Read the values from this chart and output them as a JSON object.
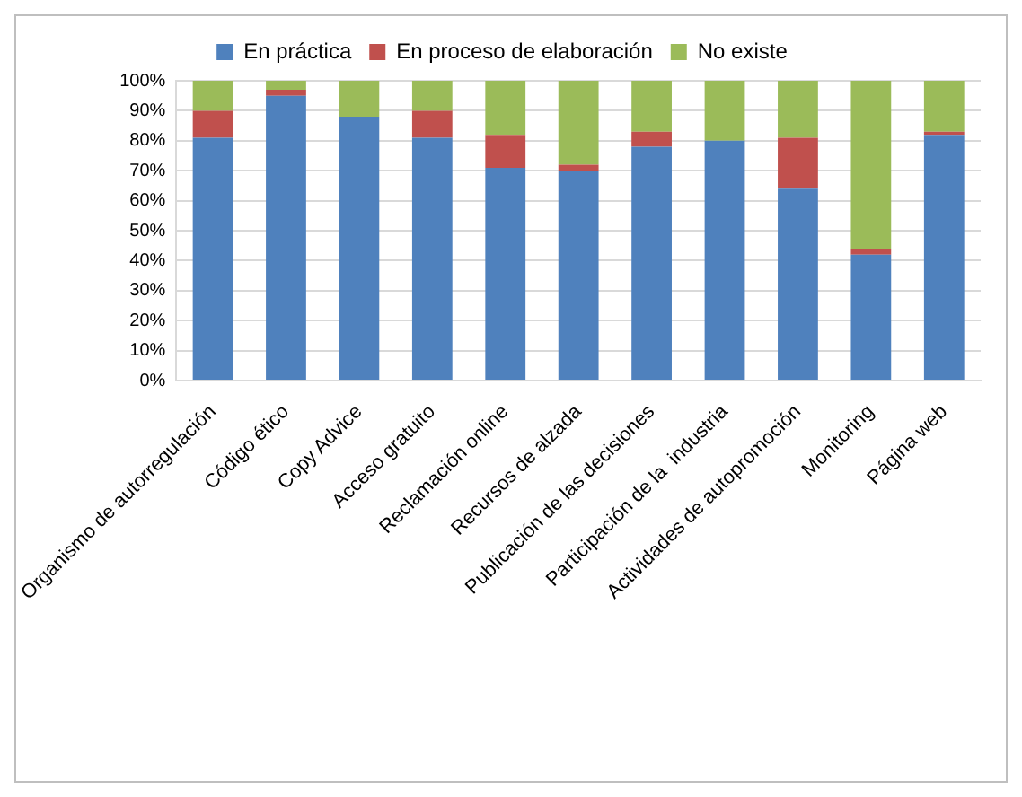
{
  "chart_data": {
    "type": "bar",
    "stacked": true,
    "categories": [
      "Organismo de autorregulación",
      "Código ético",
      "Copy Advice",
      "Acceso gratuito",
      "Reclamación online",
      "Recursos de alzada",
      "Publicación de las decisiones",
      "Participación de la  industria",
      "Actividades de autopromoción",
      "Monitoring",
      "Página web"
    ],
    "series": [
      {
        "name": "En práctica",
        "color": "#4f81bd",
        "values": [
          81,
          95,
          88,
          81,
          71,
          70,
          78,
          80,
          64,
          42,
          82
        ]
      },
      {
        "name": "En proceso de elaboración",
        "color": "#c0504d",
        "values": [
          9,
          2,
          0,
          9,
          11,
          2,
          5,
          0,
          17,
          2,
          1
        ]
      },
      {
        "name": "No existe",
        "color": "#9bbb59",
        "values": [
          10,
          3,
          12,
          10,
          18,
          28,
          17,
          20,
          19,
          56,
          17
        ]
      }
    ],
    "ylim": [
      0,
      100
    ],
    "yticks": [
      {
        "value": 0,
        "label": "0%"
      },
      {
        "value": 10,
        "label": "10%"
      },
      {
        "value": 20,
        "label": "20%"
      },
      {
        "value": 30,
        "label": "30%"
      },
      {
        "value": 40,
        "label": "40%"
      },
      {
        "value": 50,
        "label": "50%"
      },
      {
        "value": 60,
        "label": "60%"
      },
      {
        "value": 70,
        "label": "70%"
      },
      {
        "value": 80,
        "label": "80%"
      },
      {
        "value": 90,
        "label": "90%"
      },
      {
        "value": 100,
        "label": "100%"
      }
    ],
    "grid": "y",
    "legend": "top"
  }
}
